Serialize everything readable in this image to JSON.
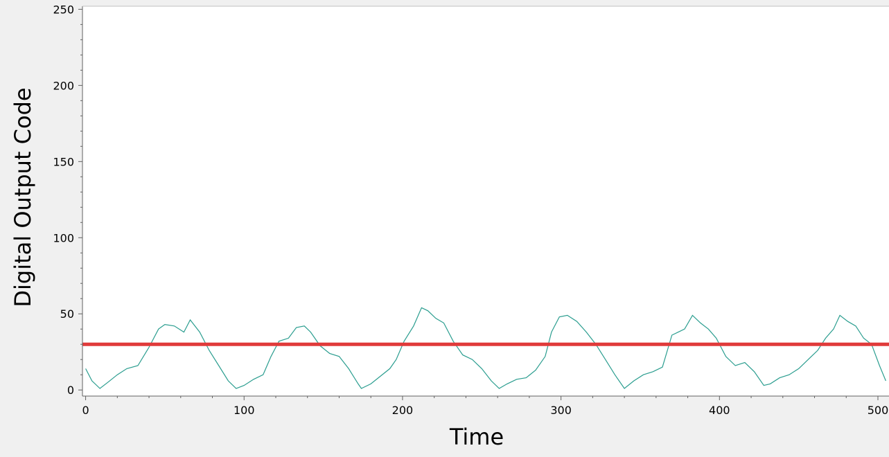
{
  "chart_data": {
    "type": "line",
    "title": "",
    "xlabel": "Time",
    "ylabel": "Digital Output Code",
    "xlim": [
      -2,
      507
    ],
    "ylim": [
      -4,
      252
    ],
    "xticks": [
      0,
      100,
      200,
      300,
      400,
      500
    ],
    "yticks": [
      0,
      50,
      100,
      150,
      200,
      250
    ],
    "grid": false,
    "legend": "none",
    "series": [
      {
        "color": "#2a9d8f",
        "x": [
          0,
          4,
          9,
          14,
          20,
          26,
          33,
          40,
          46,
          50,
          56,
          62,
          66,
          72,
          78,
          84,
          90,
          95,
          100,
          106,
          112,
          117,
          122,
          128,
          133,
          138,
          142,
          148,
          154,
          160,
          166,
          172,
          174,
          180,
          186,
          192,
          196,
          201,
          207,
          212,
          216,
          221,
          226,
          232,
          238,
          244,
          250,
          256,
          261,
          266,
          272,
          278,
          284,
          290,
          294,
          299,
          304,
          310,
          316,
          322,
          328,
          334,
          340,
          346,
          352,
          358,
          364,
          370,
          374,
          378,
          383,
          388,
          393,
          398,
          404,
          410,
          416,
          422,
          428,
          432,
          438,
          444,
          450,
          456,
          462,
          467,
          472,
          476,
          481,
          486,
          491,
          496,
          501,
          505
        ],
        "y": [
          14,
          6,
          1,
          5,
          10,
          14,
          16,
          28,
          40,
          43,
          42,
          38,
          46,
          38,
          26,
          16,
          6,
          1,
          3,
          7,
          10,
          22,
          32,
          34,
          41,
          42,
          38,
          29,
          24,
          22,
          14,
          4,
          1,
          4,
          9,
          14,
          20,
          32,
          42,
          54,
          52,
          47,
          44,
          32,
          23,
          20,
          14,
          6,
          1,
          4,
          7,
          8,
          13,
          22,
          38,
          48,
          49,
          45,
          38,
          30,
          20,
          10,
          1,
          6,
          10,
          12,
          15,
          36,
          38,
          40,
          49,
          44,
          40,
          34,
          22,
          16,
          18,
          12,
          3,
          4,
          8,
          10,
          14,
          20,
          26,
          34,
          40,
          49,
          45,
          42,
          34,
          30,
          16,
          6
        ]
      }
    ],
    "reference_lines": [
      {
        "y": 30,
        "color": "#e03a3a"
      }
    ]
  }
}
